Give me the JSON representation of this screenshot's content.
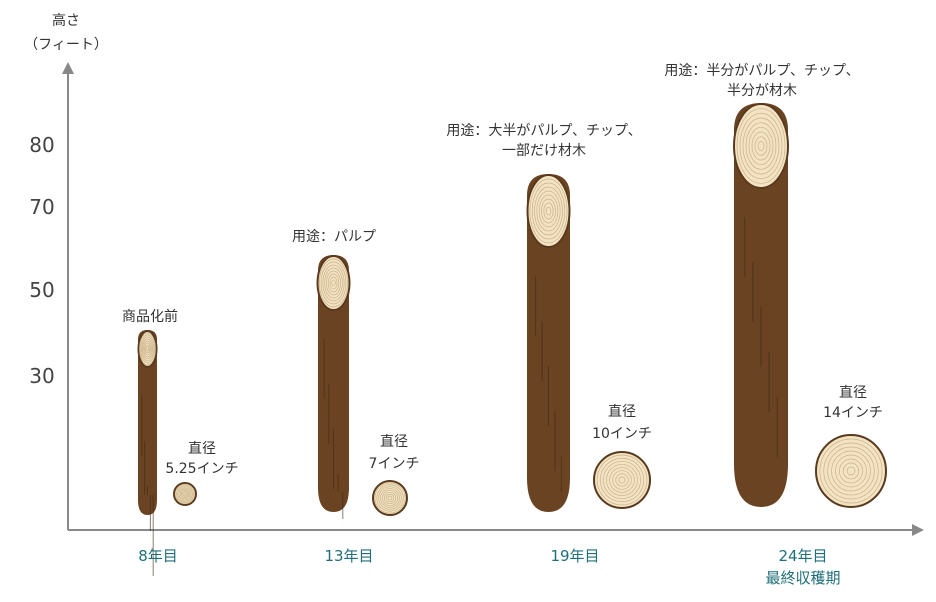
{
  "axis": {
    "y_title_line1": "高さ",
    "y_title_line2": "（フィート）",
    "y_ticks": [
      "80",
      "70",
      "50",
      "30"
    ]
  },
  "stages": [
    {
      "x_label": "8年目",
      "x_label2": "",
      "use_line1": "商品化前",
      "use_line2": "",
      "diameter_label": "直径",
      "diameter_value": "5.25インチ"
    },
    {
      "x_label": "13年目",
      "x_label2": "",
      "use_line1": "用途：パルプ",
      "use_line2": "",
      "diameter_label": "直径",
      "diameter_value": "7インチ"
    },
    {
      "x_label": "19年目",
      "x_label2": "",
      "use_line1": "用途：大半がパルプ、チップ、",
      "use_line2": "一部だけ材木",
      "diameter_label": "直径",
      "diameter_value": "10インチ"
    },
    {
      "x_label": "24年目",
      "x_label2": "最終収穫期",
      "use_line1": "用途：半分がパルプ、チップ、",
      "use_line2": "半分が材木",
      "diameter_label": "直径",
      "diameter_value": "14インチ"
    }
  ],
  "colors": {
    "trunk": "#6a4322",
    "wood_face": "#f3e3c3",
    "axis": "#888888",
    "stage_label": "#1f6f7a"
  }
}
